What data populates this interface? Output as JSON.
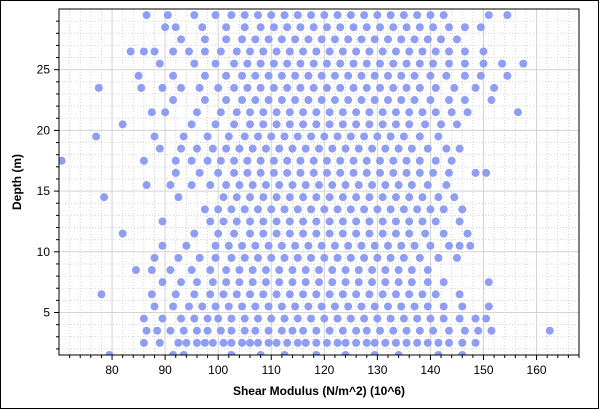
{
  "chart_data": {
    "type": "scatter",
    "title": "",
    "xlabel": "Shear Modulus (N/m^2) (10^6)",
    "ylabel": "Depth (m)",
    "xlim": [
      70,
      168
    ],
    "ylim": [
      1.5,
      30
    ],
    "x_ticks": [
      80,
      90,
      100,
      110,
      120,
      130,
      140,
      150,
      160
    ],
    "y_ticks": [
      5,
      10,
      15,
      20,
      25
    ],
    "grid": true,
    "minor_grid": "dotted",
    "legend": "none",
    "point_color": "#8f9ef2",
    "axis_color": "#000000",
    "grid_color": "#d3d3d3",
    "depth_levels_m": [
      1.5,
      2.5,
      3.5,
      4.5,
      5.5,
      6.5,
      7.5,
      8.5,
      9.5,
      10.5,
      11.5,
      12.5,
      13.5,
      14.5,
      15.5,
      16.5,
      17.5,
      18.5,
      19.5,
      20.5,
      21.5,
      22.5,
      23.5,
      24.5,
      25.5,
      26.5,
      27.5,
      28.5,
      29.5
    ],
    "series": [
      {
        "points_per_depth": [
          {
            "depth": 1.5,
            "x": [
              79.5,
              91.5,
              93.5,
              102.5,
              108.0,
              112.5,
              118.5,
              124.0,
              129.5,
              134.0,
              141.5,
              146.0
            ]
          },
          {
            "depth": 2.5,
            "x": [
              86.0,
              89.0,
              92.5,
              94.0,
              96.0,
              97.5,
              99.0,
              101.0,
              102.5,
              104.5,
              106.0,
              107.5,
              109.5,
              111.0,
              113.0,
              115.0,
              116.5,
              118.5,
              120.5,
              122.5,
              124.0,
              126.0,
              128.0,
              129.5,
              131.5,
              133.5,
              135.5,
              137.5,
              139.5,
              141.5,
              143.5,
              146.0,
              148.5
            ]
          },
          {
            "depth": 3.5,
            "x": [
              86.5,
              88.5,
              91.0,
              93.5,
              96.0,
              98.0,
              100.5,
              102.5,
              105.0,
              107.0,
              109.5,
              112.0,
              114.0,
              116.0,
              118.5,
              121.0,
              123.5,
              126.0,
              128.0,
              130.5,
              133.0,
              135.5,
              138.0,
              140.5,
              143.5,
              146.5,
              149.0,
              151.5,
              162.5
            ]
          },
          {
            "depth": 4.5,
            "x": [
              86.0,
              89.5,
              93.0,
              95.5,
              98.0,
              100.0,
              102.5,
              105.0,
              107.5,
              110.0,
              112.5,
              115.0,
              117.5,
              120.0,
              122.5,
              125.0,
              127.5,
              130.0,
              132.5,
              135.0,
              137.5,
              140.0,
              142.5,
              145.5,
              148.5,
              150.5
            ]
          },
          {
            "depth": 5.5,
            "x": [
              88.0,
              91.5,
              94.5,
              97.0,
              99.5,
              102.0,
              104.5,
              107.0,
              109.5,
              112.0,
              114.5,
              117.0,
              119.5,
              122.0,
              124.5,
              127.0,
              129.5,
              132.0,
              134.5,
              137.0,
              139.5,
              142.5,
              146.0,
              151.0
            ]
          },
          {
            "depth": 6.5,
            "x": [
              78.0,
              87.5,
              92.0,
              95.5,
              98.5,
              101.0,
              103.5,
              106.0,
              108.5,
              111.0,
              113.5,
              116.0,
              118.5,
              121.0,
              123.5,
              126.0,
              128.5,
              131.0,
              133.5,
              136.0,
              138.5,
              141.0,
              145.5
            ]
          },
          {
            "depth": 7.5,
            "x": [
              89.5,
              93.0,
              96.0,
              99.0,
              101.5,
              104.0,
              106.5,
              109.0,
              111.5,
              114.0,
              116.5,
              119.0,
              121.5,
              124.0,
              126.5,
              129.0,
              131.5,
              134.0,
              136.5,
              139.5,
              142.5,
              151.0
            ]
          },
          {
            "depth": 8.5,
            "x": [
              84.5,
              87.5,
              91.0,
              95.0,
              98.5,
              101.5,
              104.0,
              106.5,
              109.0,
              111.5,
              114.0,
              116.5,
              119.0,
              121.5,
              124.0,
              126.5,
              129.0,
              131.5,
              134.0,
              136.5,
              139.5
            ]
          },
          {
            "depth": 9.5,
            "x": [
              88.0,
              92.5,
              96.5,
              99.5,
              102.5,
              105.0,
              107.5,
              110.0,
              112.5,
              115.0,
              117.5,
              120.0,
              122.5,
              125.0,
              127.5,
              130.0,
              132.5,
              135.0,
              138.0,
              141.5,
              145.0
            ]
          },
          {
            "depth": 10.5,
            "x": [
              89.5,
              94.0,
              99.5,
              102.0,
              104.5,
              107.0,
              109.5,
              112.0,
              114.5,
              117.0,
              119.5,
              122.0,
              124.5,
              127.0,
              129.5,
              132.0,
              134.5,
              137.0,
              140.0,
              143.5,
              145.5,
              147.5
            ]
          },
          {
            "depth": 11.5,
            "x": [
              82.0,
              95.5,
              100.0,
              103.0,
              106.0,
              108.5,
              111.0,
              113.5,
              116.0,
              118.5,
              121.0,
              123.5,
              126.0,
              128.5,
              131.0,
              133.5,
              136.0,
              139.0,
              142.5,
              147.0
            ]
          },
          {
            "depth": 12.5,
            "x": [
              89.5,
              98.5,
              101.0,
              103.5,
              106.0,
              108.5,
              111.0,
              113.5,
              116.0,
              118.5,
              121.0,
              123.5,
              126.0,
              128.5,
              131.0,
              133.5,
              136.0,
              138.5,
              141.0,
              145.5
            ]
          },
          {
            "depth": 13.5,
            "x": [
              97.5,
              100.0,
              102.5,
              105.0,
              107.5,
              110.0,
              112.5,
              115.0,
              117.5,
              120.0,
              122.5,
              125.0,
              127.5,
              130.0,
              132.5,
              135.0,
              137.5,
              140.0,
              142.5,
              146.0
            ]
          },
          {
            "depth": 14.5,
            "x": [
              78.5,
              92.5,
              101.0,
              103.5,
              106.0,
              108.5,
              111.0,
              113.5,
              116.0,
              118.5,
              121.0,
              123.5,
              126.0,
              128.5,
              131.0,
              133.5,
              136.0,
              138.5,
              141.5,
              144.5
            ]
          },
          {
            "depth": 15.5,
            "x": [
              86.5,
              91.0,
              95.0,
              98.5,
              101.5,
              104.0,
              106.5,
              109.0,
              111.5,
              114.0,
              116.5,
              119.0,
              121.5,
              124.0,
              126.5,
              129.0,
              131.5,
              134.0,
              136.5,
              139.5,
              143.0
            ]
          },
          {
            "depth": 16.5,
            "x": [
              92.0,
              96.5,
              100.0,
              103.0,
              105.5,
              108.0,
              110.5,
              113.0,
              115.5,
              118.0,
              120.5,
              123.0,
              125.5,
              128.0,
              130.5,
              133.0,
              135.5,
              138.0,
              140.5,
              143.5,
              148.5,
              150.5
            ]
          },
          {
            "depth": 17.5,
            "x": [
              70.5,
              86.0,
              92.0,
              95.0,
              98.0,
              100.5,
              103.0,
              105.5,
              108.0,
              110.5,
              113.0,
              115.5,
              118.0,
              120.5,
              123.0,
              125.5,
              128.0,
              130.5,
              133.0,
              135.5,
              138.0,
              141.0,
              144.0
            ]
          },
          {
            "depth": 18.5,
            "x": [
              89.0,
              93.0,
              96.0,
              99.0,
              101.5,
              104.0,
              106.5,
              109.0,
              111.5,
              114.0,
              116.5,
              119.0,
              121.5,
              124.0,
              126.5,
              129.0,
              131.5,
              134.0,
              136.5,
              139.5,
              143.0,
              145.5
            ]
          },
          {
            "depth": 19.5,
            "x": [
              77.0,
              88.0,
              93.5,
              98.0,
              102.0,
              105.0,
              107.5,
              110.0,
              112.5,
              115.0,
              117.5,
              120.0,
              122.5,
              125.0,
              127.5,
              130.0,
              132.5,
              135.0,
              138.0,
              141.5
            ]
          },
          {
            "depth": 20.5,
            "x": [
              82.0,
              95.0,
              99.5,
              103.0,
              106.0,
              108.5,
              111.0,
              113.5,
              116.0,
              118.5,
              121.0,
              123.5,
              126.0,
              128.5,
              131.0,
              133.5,
              136.0,
              139.0,
              142.0,
              145.0
            ]
          },
          {
            "depth": 21.5,
            "x": [
              87.5,
              90.0,
              96.0,
              100.5,
              103.5,
              106.0,
              108.5,
              111.0,
              113.5,
              116.0,
              118.5,
              121.0,
              123.5,
              126.0,
              128.5,
              131.0,
              133.5,
              136.0,
              138.5,
              141.0,
              144.0,
              147.0,
              156.5
            ]
          },
          {
            "depth": 22.5,
            "x": [
              91.5,
              97.5,
              101.5,
              104.5,
              107.0,
              109.5,
              112.0,
              114.5,
              117.0,
              119.5,
              122.0,
              124.5,
              127.0,
              129.5,
              132.0,
              134.5,
              137.0,
              140.0,
              143.5,
              146.5,
              151.5
            ]
          },
          {
            "depth": 23.5,
            "x": [
              77.5,
              85.5,
              89.5,
              93.0,
              96.5,
              100.0,
              103.0,
              105.5,
              108.0,
              110.5,
              113.0,
              115.5,
              118.0,
              120.5,
              123.0,
              125.5,
              128.0,
              130.5,
              133.0,
              135.5,
              138.0,
              141.0,
              144.5,
              148.5,
              152.0
            ]
          },
          {
            "depth": 24.5,
            "x": [
              85.0,
              91.5,
              97.5,
              101.5,
              104.5,
              107.0,
              109.5,
              112.0,
              114.5,
              117.0,
              119.5,
              122.0,
              124.5,
              127.0,
              129.5,
              132.0,
              134.5,
              137.0,
              140.0,
              143.0,
              146.5,
              149.5,
              154.5
            ]
          },
          {
            "depth": 25.5,
            "x": [
              89.0,
              95.5,
              99.5,
              103.0,
              105.5,
              108.0,
              110.5,
              113.0,
              115.5,
              118.0,
              120.5,
              123.0,
              125.5,
              128.0,
              130.5,
              133.0,
              135.5,
              138.0,
              140.5,
              143.5,
              146.5,
              150.0,
              153.5,
              157.5
            ]
          },
          {
            "depth": 26.5,
            "x": [
              83.5,
              86.0,
              88.0,
              91.5,
              94.5,
              97.5,
              100.5,
              103.5,
              106.0,
              108.5,
              111.0,
              113.5,
              116.0,
              118.5,
              121.0,
              123.5,
              126.0,
              128.5,
              131.0,
              133.5,
              136.0,
              138.5,
              141.0,
              143.5,
              146.5,
              150.0
            ]
          },
          {
            "depth": 27.5,
            "x": [
              93.0,
              97.5,
              101.5,
              104.5,
              107.0,
              109.5,
              112.0,
              114.5,
              117.0,
              119.5,
              122.0,
              124.5,
              127.0,
              129.5,
              132.0,
              134.5,
              137.0,
              139.5,
              142.0,
              145.0
            ]
          },
          {
            "depth": 28.5,
            "x": [
              90.0,
              92.0,
              97.0,
              101.5,
              105.0,
              108.0,
              110.5,
              113.0,
              115.5,
              118.0,
              120.5,
              123.0,
              125.5,
              128.0,
              130.5,
              133.0,
              135.5,
              138.0,
              140.5,
              143.5,
              146.5,
              149.5
            ]
          },
          {
            "depth": 29.5,
            "x": [
              86.5,
              90.5,
              95.5,
              99.5,
              102.5,
              105.0,
              107.5,
              110.0,
              112.5,
              115.0,
              117.5,
              120.0,
              122.5,
              125.0,
              127.5,
              130.0,
              132.5,
              135.0,
              137.5,
              140.0,
              142.5,
              151.0,
              154.5
            ]
          }
        ]
      }
    ]
  }
}
